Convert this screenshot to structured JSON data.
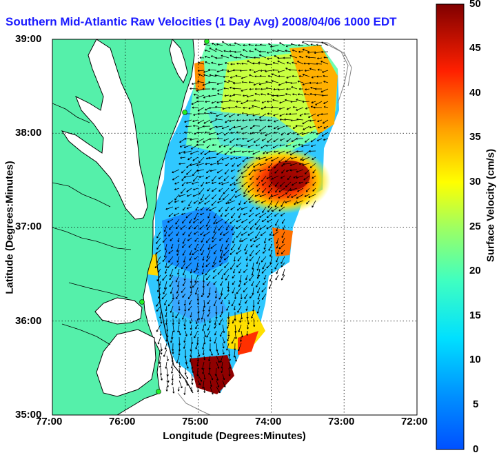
{
  "title": "Southern Mid-Atlantic Raw Velocities (1 Day Avg) 2008/04/06 1000 EDT",
  "map": {
    "xlabel": "Longitude (Degrees:Minutes)",
    "ylabel": "Latitude (Degrees:Minutes)",
    "xticks": [
      "77:00",
      "76:00",
      "75:00",
      "74:00",
      "73:00",
      "72:00"
    ],
    "yticks": [
      "39:00",
      "38:00",
      "37:00",
      "36:00",
      "35:00"
    ],
    "lon_range": [
      -77,
      -72
    ],
    "lat_range": [
      35,
      39
    ],
    "grid": "dotted",
    "land_color": "#55f0aa"
  },
  "colorbar": {
    "label": "Surface Velocity (cm/s)",
    "ticks": [
      "50",
      "45",
      "40",
      "35",
      "30",
      "25",
      "20",
      "15",
      "10",
      "5",
      "0"
    ],
    "range": [
      0,
      50
    ],
    "colormap": "jet"
  }
}
